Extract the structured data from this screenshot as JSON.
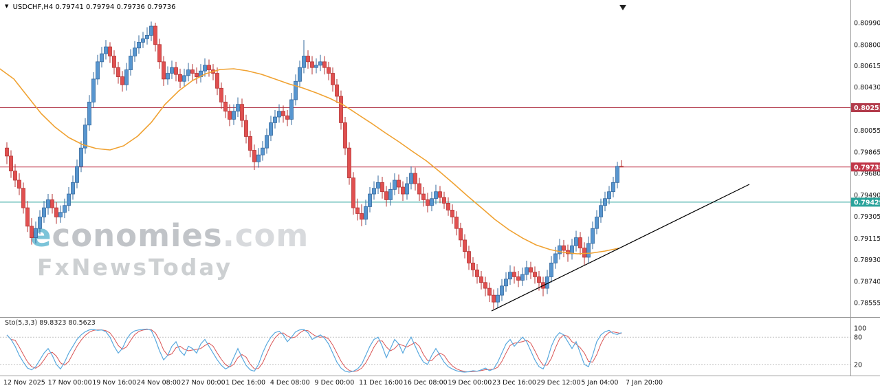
{
  "header": {
    "symbol": "USDCHF,H4",
    "open": "0.79741",
    "high": "0.79794",
    "low": "0.79736",
    "close": "0.79736"
  },
  "watermark": {
    "logo_e": "e",
    "logo_body": "conomies",
    "logo_suffix": ".com",
    "subtitle": "FxNewsToday"
  },
  "indicator": {
    "label": "Sto(5,3,3)",
    "k_value": "89.8323",
    "d_value": "80.5623"
  },
  "colors": {
    "bull_fill": "#5795cf",
    "bull_stroke": "#33689e",
    "bear_fill": "#e05050",
    "bear_stroke": "#b63232",
    "ma": "#f0a232",
    "resistance": "#b23b4b",
    "support": "#2aa39b",
    "trendline": "#000000",
    "stoch_k": "#58a8de",
    "stoch_d": "#d95454",
    "axis_line": "#9a9a9a",
    "level_line": "#c4c4c4",
    "background": "#ffffff"
  },
  "chart_data": {
    "type": "candlestick",
    "symbol": "USDCHF",
    "timeframe": "H4",
    "current_bar": {
      "open": 0.79741,
      "high": 0.79794,
      "low": 0.79736,
      "close": 0.79736
    },
    "ylim": [
      0.78555,
      0.8099
    ],
    "yticks": [
      "0.80990",
      "0.80800",
      "0.80615",
      "0.80430",
      "0.80240",
      "0.80055",
      "0.79865",
      "0.79680",
      "0.79490",
      "0.79305",
      "0.79115",
      "0.78930",
      "0.78740",
      "0.78555"
    ],
    "xticks": [
      "12 Nov 2025",
      "17 Nov 00:00",
      "19 Nov 16:00",
      "24 Nov 08:00",
      "27 Nov 00:00",
      "1 Dec 16:00",
      "4 Dec 08:00",
      "9 Dec 00:00",
      "11 Dec 16:00",
      "16 Dec 08:00",
      "19 Dec 00:00",
      "23 Dec 16:00",
      "29 Dec 12:00",
      "5 Jan 04:00",
      "7 Jan 20:00"
    ],
    "hlines": [
      {
        "price": 0.80251,
        "label": "0.80251",
        "color": "#b23b4b"
      },
      {
        "price": 0.79735,
        "label": "0.79735",
        "color": "#c1384a"
      },
      {
        "price": 0.79429,
        "label": "0.79429",
        "color": "#2aa39b"
      }
    ],
    "trendline": {
      "color": "#000000",
      "from": [
        117.5,
        0.78483
      ],
      "to": [
        180,
        0.79584
      ]
    },
    "ma_line": {
      "color": "#f0a232",
      "points": [
        [
          -1.7,
          0.80589
        ],
        [
          1.7,
          0.805
        ],
        [
          5,
          0.8035
        ],
        [
          8.3,
          0.802
        ],
        [
          11.7,
          0.80081
        ],
        [
          15,
          0.79991
        ],
        [
          18.3,
          0.79931
        ],
        [
          21.7,
          0.79895
        ],
        [
          25,
          0.79883
        ],
        [
          28.3,
          0.79919
        ],
        [
          31.7,
          0.80003
        ],
        [
          35,
          0.80122
        ],
        [
          38.3,
          0.80278
        ],
        [
          41.7,
          0.80398
        ],
        [
          45,
          0.80487
        ],
        [
          48.3,
          0.80547
        ],
        [
          51.7,
          0.80583
        ],
        [
          55,
          0.80589
        ],
        [
          58.3,
          0.80571
        ],
        [
          61.7,
          0.80541
        ],
        [
          65,
          0.805
        ],
        [
          68.3,
          0.80458
        ],
        [
          71.7,
          0.80422
        ],
        [
          75,
          0.8038
        ],
        [
          78.3,
          0.80332
        ],
        [
          81.7,
          0.80272
        ],
        [
          85,
          0.80194
        ],
        [
          88.3,
          0.80117
        ],
        [
          91.7,
          0.80033
        ],
        [
          95,
          0.79955
        ],
        [
          98.3,
          0.79871
        ],
        [
          101.7,
          0.79788
        ],
        [
          105,
          0.79692
        ],
        [
          108.3,
          0.7959
        ],
        [
          111.7,
          0.79482
        ],
        [
          115,
          0.79381
        ],
        [
          118.3,
          0.79279
        ],
        [
          121.7,
          0.79189
        ],
        [
          125,
          0.79117
        ],
        [
          128.3,
          0.79057
        ],
        [
          131.7,
          0.79016
        ],
        [
          135,
          0.78992
        ],
        [
          138.3,
          0.7898
        ],
        [
          141.7,
          0.78986
        ],
        [
          145,
          0.79004
        ],
        [
          148.3,
          0.79028
        ]
      ]
    },
    "candles": [
      [
        0.799,
        0.7995,
        0.7976,
        0.7983
      ],
      [
        0.7983,
        0.7988,
        0.7964,
        0.797
      ],
      [
        0.797,
        0.7976,
        0.7956,
        0.7962
      ],
      [
        0.7962,
        0.7968,
        0.7949,
        0.7955
      ],
      [
        0.7955,
        0.796,
        0.7933,
        0.7938
      ],
      [
        0.7938,
        0.7944,
        0.7917,
        0.7922
      ],
      [
        0.7922,
        0.7929,
        0.7906,
        0.7912
      ],
      [
        0.7912,
        0.7926,
        0.7907,
        0.792
      ],
      [
        0.792,
        0.7936,
        0.7915,
        0.793
      ],
      [
        0.793,
        0.7944,
        0.7925,
        0.7938
      ],
      [
        0.7938,
        0.795,
        0.7932,
        0.7945
      ],
      [
        0.7945,
        0.795,
        0.7933,
        0.7938
      ],
      [
        0.7938,
        0.7943,
        0.7924,
        0.793
      ],
      [
        0.793,
        0.794,
        0.7925,
        0.7934
      ],
      [
        0.7934,
        0.7946,
        0.7929,
        0.794
      ],
      [
        0.794,
        0.7956,
        0.7935,
        0.795
      ],
      [
        0.795,
        0.7966,
        0.7945,
        0.796
      ],
      [
        0.796,
        0.798,
        0.7955,
        0.7974
      ],
      [
        0.7974,
        0.7996,
        0.7969,
        0.799
      ],
      [
        0.799,
        0.8016,
        0.7985,
        0.801
      ],
      [
        0.801,
        0.8036,
        0.8005,
        0.803
      ],
      [
        0.803,
        0.8056,
        0.8025,
        0.805
      ],
      [
        0.805,
        0.8071,
        0.8045,
        0.8065
      ],
      [
        0.8065,
        0.8078,
        0.806,
        0.8072
      ],
      [
        0.8072,
        0.8084,
        0.8067,
        0.8078
      ],
      [
        0.8078,
        0.8082,
        0.8064,
        0.807
      ],
      [
        0.807,
        0.8075,
        0.8054,
        0.806
      ],
      [
        0.806,
        0.8065,
        0.8046,
        0.8052
      ],
      [
        0.8052,
        0.8057,
        0.8039,
        0.8045
      ],
      [
        0.8045,
        0.8064,
        0.804,
        0.8058
      ],
      [
        0.8058,
        0.8076,
        0.8053,
        0.807
      ],
      [
        0.807,
        0.8083,
        0.8065,
        0.8077
      ],
      [
        0.8077,
        0.8088,
        0.8072,
        0.8082
      ],
      [
        0.8082,
        0.8091,
        0.8077,
        0.8085
      ],
      [
        0.8085,
        0.8095,
        0.808,
        0.8088
      ],
      [
        0.8088,
        0.81,
        0.8083,
        0.8096
      ],
      [
        0.8096,
        0.8099,
        0.8074,
        0.808
      ],
      [
        0.808,
        0.8085,
        0.8059,
        0.8065
      ],
      [
        0.8065,
        0.807,
        0.8044,
        0.805
      ],
      [
        0.805,
        0.8061,
        0.8045,
        0.8055
      ],
      [
        0.8055,
        0.8066,
        0.805,
        0.806
      ],
      [
        0.806,
        0.8065,
        0.8048,
        0.8054
      ],
      [
        0.8054,
        0.8059,
        0.8042,
        0.8048
      ],
      [
        0.8048,
        0.8059,
        0.8043,
        0.8053
      ],
      [
        0.8053,
        0.8064,
        0.8048,
        0.8058
      ],
      [
        0.8058,
        0.8063,
        0.8049,
        0.8055
      ],
      [
        0.8055,
        0.806,
        0.8046,
        0.8052
      ],
      [
        0.8052,
        0.8063,
        0.8047,
        0.8057
      ],
      [
        0.8057,
        0.8068,
        0.8052,
        0.8062
      ],
      [
        0.8062,
        0.8067,
        0.8052,
        0.8058
      ],
      [
        0.8058,
        0.8063,
        0.8049,
        0.8055
      ],
      [
        0.8055,
        0.806,
        0.8036,
        0.8042
      ],
      [
        0.8042,
        0.8047,
        0.8024,
        0.803
      ],
      [
        0.803,
        0.8036,
        0.8016,
        0.8022
      ],
      [
        0.8022,
        0.8028,
        0.8009,
        0.8015
      ],
      [
        0.8015,
        0.8028,
        0.801,
        0.8022
      ],
      [
        0.8022,
        0.8034,
        0.8017,
        0.8028
      ],
      [
        0.8028,
        0.8033,
        0.8008,
        0.8014
      ],
      [
        0.8014,
        0.8019,
        0.7994,
        0.8
      ],
      [
        0.8,
        0.8005,
        0.7982,
        0.7988
      ],
      [
        0.7988,
        0.7993,
        0.7971,
        0.7978
      ],
      [
        0.7978,
        0.799,
        0.7973,
        0.7984
      ],
      [
        0.7984,
        0.7996,
        0.7979,
        0.799
      ],
      [
        0.799,
        0.8007,
        0.7985,
        0.8001
      ],
      [
        0.8001,
        0.8018,
        0.7996,
        0.8012
      ],
      [
        0.8012,
        0.8023,
        0.8007,
        0.8017
      ],
      [
        0.8017,
        0.8028,
        0.8012,
        0.8022
      ],
      [
        0.8022,
        0.8027,
        0.8012,
        0.8018
      ],
      [
        0.8018,
        0.8023,
        0.8009,
        0.8015
      ],
      [
        0.8015,
        0.8038,
        0.801,
        0.8032
      ],
      [
        0.8032,
        0.8054,
        0.8027,
        0.8048
      ],
      [
        0.8048,
        0.8066,
        0.8043,
        0.806
      ],
      [
        0.806,
        0.8084,
        0.8055,
        0.807
      ],
      [
        0.807,
        0.8075,
        0.8059,
        0.8065
      ],
      [
        0.8065,
        0.807,
        0.8054,
        0.806
      ],
      [
        0.806,
        0.8068,
        0.8055,
        0.8062
      ],
      [
        0.8062,
        0.8071,
        0.8057,
        0.8065
      ],
      [
        0.8065,
        0.807,
        0.8054,
        0.806
      ],
      [
        0.806,
        0.8065,
        0.8049,
        0.8055
      ],
      [
        0.8055,
        0.806,
        0.8039,
        0.8045
      ],
      [
        0.8045,
        0.805,
        0.8029,
        0.8035
      ],
      [
        0.8035,
        0.804,
        0.8006,
        0.8012
      ],
      [
        0.8012,
        0.8017,
        0.7984,
        0.799
      ],
      [
        0.799,
        0.7995,
        0.7958,
        0.7964
      ],
      [
        0.7964,
        0.7969,
        0.7932,
        0.7938
      ],
      [
        0.7938,
        0.7946,
        0.7927,
        0.7933
      ],
      [
        0.7933,
        0.7941,
        0.7922,
        0.7928
      ],
      [
        0.7928,
        0.7945,
        0.7923,
        0.7939
      ],
      [
        0.7939,
        0.7956,
        0.7934,
        0.795
      ],
      [
        0.795,
        0.7961,
        0.7945,
        0.7955
      ],
      [
        0.7955,
        0.7966,
        0.795,
        0.796
      ],
      [
        0.796,
        0.7965,
        0.7946,
        0.7952
      ],
      [
        0.7952,
        0.7957,
        0.7939,
        0.7945
      ],
      [
        0.7945,
        0.796,
        0.794,
        0.7954
      ],
      [
        0.7954,
        0.7968,
        0.7949,
        0.7962
      ],
      [
        0.7962,
        0.7967,
        0.795,
        0.7956
      ],
      [
        0.7956,
        0.7961,
        0.7944,
        0.795
      ],
      [
        0.795,
        0.7965,
        0.7945,
        0.7959
      ],
      [
        0.7959,
        0.7974,
        0.7954,
        0.7968
      ],
      [
        0.7968,
        0.7973,
        0.7953,
        0.7959
      ],
      [
        0.7959,
        0.7964,
        0.7944,
        0.795
      ],
      [
        0.795,
        0.7956,
        0.7939,
        0.7945
      ],
      [
        0.7945,
        0.7951,
        0.7934,
        0.794
      ],
      [
        0.794,
        0.7952,
        0.7935,
        0.7946
      ],
      [
        0.7946,
        0.7958,
        0.7941,
        0.7952
      ],
      [
        0.7952,
        0.7957,
        0.7942,
        0.7947
      ],
      [
        0.7947,
        0.7952,
        0.7937,
        0.7942
      ],
      [
        0.7942,
        0.7947,
        0.7931,
        0.7936
      ],
      [
        0.7936,
        0.7941,
        0.7924,
        0.793
      ],
      [
        0.793,
        0.7935,
        0.7914,
        0.792
      ],
      [
        0.792,
        0.7925,
        0.7904,
        0.791
      ],
      [
        0.791,
        0.7915,
        0.7894,
        0.79
      ],
      [
        0.79,
        0.7905,
        0.7884,
        0.789
      ],
      [
        0.789,
        0.7895,
        0.7878,
        0.7884
      ],
      [
        0.7884,
        0.7889,
        0.7872,
        0.7878
      ],
      [
        0.7878,
        0.7883,
        0.7867,
        0.7873
      ],
      [
        0.7873,
        0.7878,
        0.7861,
        0.7868
      ],
      [
        0.7868,
        0.7873,
        0.7856,
        0.7862
      ],
      [
        0.7862,
        0.7867,
        0.785,
        0.7856
      ],
      [
        0.7856,
        0.7868,
        0.7851,
        0.7862
      ],
      [
        0.7862,
        0.7876,
        0.7857,
        0.787
      ],
      [
        0.787,
        0.7882,
        0.7865,
        0.7876
      ],
      [
        0.7876,
        0.7888,
        0.7871,
        0.7882
      ],
      [
        0.7882,
        0.7887,
        0.7872,
        0.7878
      ],
      [
        0.7878,
        0.7883,
        0.7869,
        0.7875
      ],
      [
        0.7875,
        0.7886,
        0.787,
        0.788
      ],
      [
        0.788,
        0.7892,
        0.7875,
        0.7886
      ],
      [
        0.7886,
        0.7891,
        0.7876,
        0.7882
      ],
      [
        0.7882,
        0.7887,
        0.7872,
        0.7878
      ],
      [
        0.7878,
        0.7883,
        0.7866,
        0.7873
      ],
      [
        0.7873,
        0.7878,
        0.7861,
        0.7868
      ],
      [
        0.7868,
        0.7884,
        0.7863,
        0.7878
      ],
      [
        0.7878,
        0.7896,
        0.7873,
        0.789
      ],
      [
        0.789,
        0.7904,
        0.7885,
        0.7898
      ],
      [
        0.7898,
        0.7911,
        0.7893,
        0.7905
      ],
      [
        0.7905,
        0.791,
        0.7895,
        0.7901
      ],
      [
        0.7901,
        0.7906,
        0.7891,
        0.7898
      ],
      [
        0.7898,
        0.7911,
        0.7893,
        0.7905
      ],
      [
        0.7905,
        0.7918,
        0.79,
        0.7912
      ],
      [
        0.7912,
        0.7917,
        0.7897,
        0.7903
      ],
      [
        0.7903,
        0.7908,
        0.7888,
        0.7895
      ],
      [
        0.7895,
        0.7913,
        0.789,
        0.7907
      ],
      [
        0.7907,
        0.7926,
        0.7902,
        0.792
      ],
      [
        0.792,
        0.7936,
        0.7915,
        0.793
      ],
      [
        0.793,
        0.7946,
        0.7925,
        0.794
      ],
      [
        0.794,
        0.7952,
        0.7935,
        0.7946
      ],
      [
        0.7946,
        0.7957,
        0.7941,
        0.7952
      ],
      [
        0.7952,
        0.7965,
        0.7947,
        0.796
      ],
      [
        0.796,
        0.7978,
        0.7955,
        0.79741
      ],
      [
        0.79741,
        0.79794,
        0.79736,
        0.79736
      ]
    ],
    "stochastic": {
      "name": "Sto(5,3,3)",
      "k_current": 89.8323,
      "d_current": 80.5623,
      "levels": [
        100,
        80,
        20
      ],
      "dashed_levels": [
        80,
        20
      ],
      "k": [
        85,
        75,
        60,
        40,
        25,
        12,
        8,
        15,
        30,
        45,
        55,
        40,
        20,
        10,
        25,
        45,
        60,
        75,
        85,
        92,
        96,
        97,
        95,
        96,
        92,
        80,
        60,
        45,
        55,
        75,
        88,
        94,
        96,
        97,
        98,
        95,
        75,
        50,
        30,
        40,
        60,
        70,
        50,
        40,
        60,
        55,
        45,
        65,
        75,
        60,
        45,
        30,
        18,
        10,
        15,
        35,
        55,
        35,
        18,
        8,
        5,
        20,
        45,
        65,
        80,
        90,
        93,
        85,
        70,
        80,
        92,
        96,
        97,
        90,
        75,
        80,
        85,
        78,
        65,
        45,
        25,
        12,
        5,
        3,
        5,
        10,
        20,
        40,
        60,
        75,
        80,
        60,
        35,
        55,
        75,
        65,
        45,
        65,
        80,
        60,
        40,
        25,
        20,
        40,
        55,
        40,
        25,
        15,
        10,
        6,
        4,
        3,
        4,
        6,
        5,
        8,
        12,
        6,
        10,
        25,
        45,
        65,
        75,
        60,
        70,
        80,
        70,
        50,
        30,
        15,
        10,
        30,
        60,
        80,
        90,
        85,
        70,
        55,
        70,
        45,
        20,
        15,
        40,
        70,
        85,
        92,
        95,
        88,
        86,
        90
      ]
    }
  }
}
